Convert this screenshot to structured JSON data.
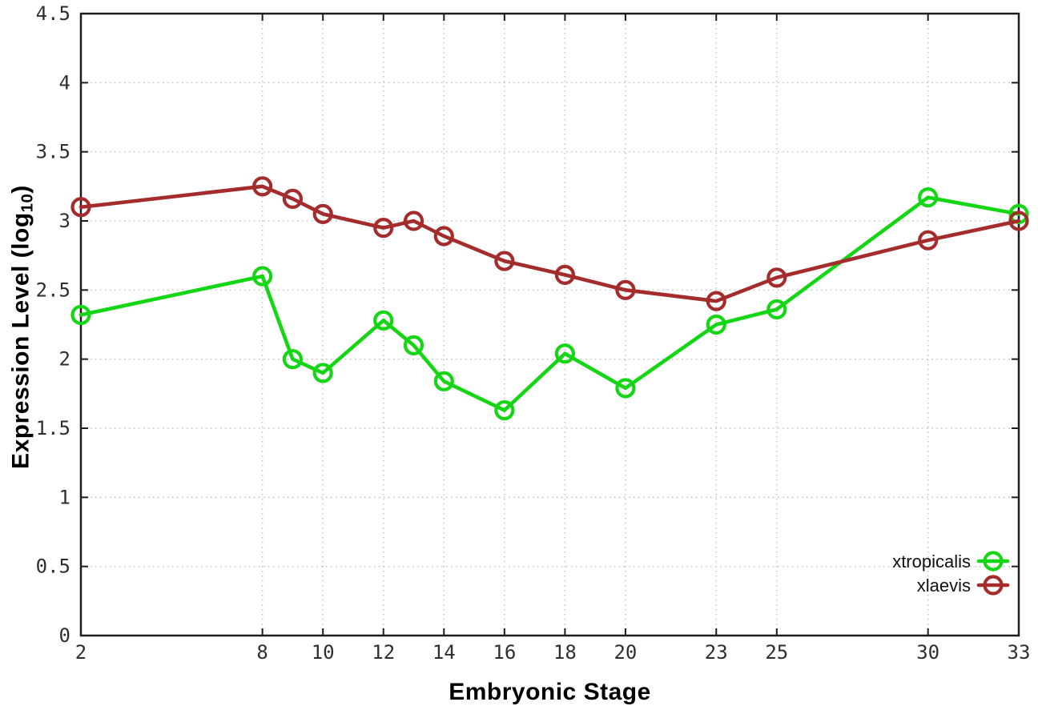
{
  "chart_data": {
    "type": "line",
    "title": "",
    "xlabel": "Embryonic Stage",
    "ylabel": "Expression Level (log10)",
    "ylabel_parts": {
      "prefix": "Expression Level (log",
      "sub": "10",
      "suffix": ")"
    },
    "x": [
      2,
      8,
      9,
      10,
      12,
      13,
      14,
      16,
      18,
      20,
      23,
      25,
      30,
      33
    ],
    "series": [
      {
        "name": "xtropicalis",
        "color": "#15d615",
        "values": [
          2.32,
          2.6,
          2.0,
          1.9,
          2.28,
          2.1,
          1.84,
          1.63,
          2.04,
          1.79,
          2.25,
          2.36,
          3.17,
          3.05
        ]
      },
      {
        "name": "xlaevis",
        "color": "#a52c2c",
        "values": [
          3.1,
          3.25,
          3.16,
          3.05,
          2.95,
          3.0,
          2.89,
          2.71,
          2.61,
          2.5,
          2.42,
          2.59,
          2.86,
          3.0
        ]
      }
    ],
    "x_ticks": [
      2,
      8,
      10,
      12,
      14,
      16,
      18,
      20,
      23,
      25,
      30,
      33
    ],
    "x_tick_labels": [
      "2",
      "8",
      "10",
      "12",
      "14",
      "16",
      "18",
      "20",
      "23",
      "25",
      "30",
      "33"
    ],
    "y_ticks": [
      0,
      0.5,
      1,
      1.5,
      2,
      2.5,
      3,
      3.5,
      4,
      4.5
    ],
    "y_tick_labels": [
      "0",
      "0.5",
      "1",
      "1.5",
      "2",
      "2.5",
      "3",
      "3.5",
      "4",
      "4.5"
    ],
    "xlim": [
      2,
      33
    ],
    "ylim": [
      0,
      4.5
    ],
    "grid": "dotted",
    "legend_position": "inside-bottom-right",
    "legend_entries": [
      "xtropicalis",
      "xlaevis"
    ],
    "colors": {
      "background": "#ffffff",
      "axis": "#1c1c1c",
      "grid": "#bdbdbd",
      "tick_label": "#2e2e2e",
      "legend_text": "#111111"
    }
  }
}
